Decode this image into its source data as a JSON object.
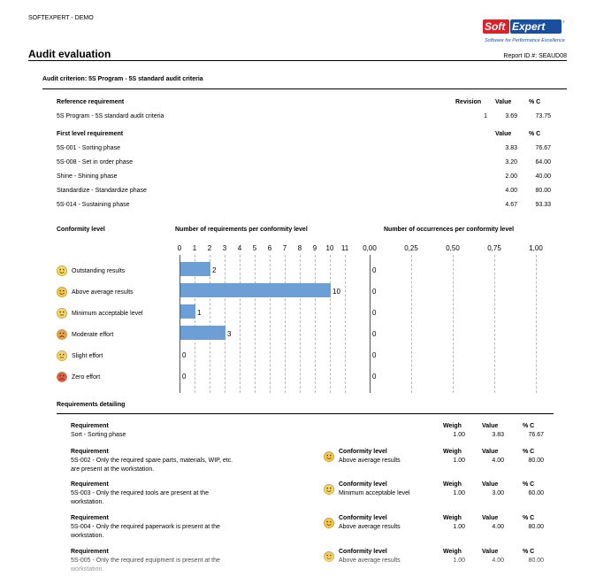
{
  "header": {
    "company": "SOFTEXPERT - DEMO",
    "title": "Audit evaluation",
    "report_id": "Report ID #: SEAUD08",
    "logo": {
      "soft": "Soft",
      "expert": "Expert",
      "tagline": "Software for Performance Excellence",
      "reg": "®"
    }
  },
  "criterion": "Audit criterion: 5S Program - 5S standard audit criteria",
  "reference": {
    "headers": {
      "name": "Reference requirement",
      "revision": "Revision",
      "value": "Value",
      "pct": "% C"
    },
    "row": {
      "name": "5S Program - 5S standard audit criteria",
      "revision": "1",
      "value": "3.69",
      "pct": "73.75"
    }
  },
  "first_level": {
    "headers": {
      "name": "First level requirement",
      "value": "Value",
      "pct": "% C"
    },
    "rows": [
      {
        "name": "5S-001 - Sorting phase",
        "value": "3.83",
        "pct": "76.67"
      },
      {
        "name": "5S-008 - Set in order phase",
        "value": "3.20",
        "pct": "64.00"
      },
      {
        "name": "Shine - Shining phase",
        "value": "2.00",
        "pct": "40.00"
      },
      {
        "name": "Standardize - Standardize phase",
        "value": "4.00",
        "pct": "80.00"
      },
      {
        "name": "5S-014 - Sustaining phase",
        "value": "4.67",
        "pct": "93.33"
      }
    ]
  },
  "conformity": {
    "title": "Conformity level",
    "levels": [
      {
        "label": "Outstanding results",
        "color": "#f2dc5a"
      },
      {
        "label": "Above average results",
        "color": "#f2c94c"
      },
      {
        "label": "Minimum acceptable level",
        "color": "#f2d66a"
      },
      {
        "label": "Moderate effort",
        "color": "#e8a34a"
      },
      {
        "label": "Slight effort",
        "color": "#f2d66a"
      },
      {
        "label": "Zero effort",
        "color": "#e05a4a"
      }
    ]
  },
  "chart_data": [
    {
      "type": "bar",
      "title": "Number of requirements per conformity level",
      "categories": [
        "Outstanding results",
        "Above average results",
        "Minimum acceptable level",
        "Moderate effort",
        "Slight effort",
        "Zero effort"
      ],
      "values": [
        2,
        10,
        1,
        3,
        0,
        0
      ],
      "xlim": [
        0,
        11
      ],
      "ticks": [
        "0",
        "1",
        "2",
        "3",
        "4",
        "5",
        "6",
        "7",
        "8",
        "9",
        "10",
        "11"
      ],
      "color": "#6d9fd6",
      "grid": true
    },
    {
      "type": "bar",
      "title": "Number of occurrences per conformity level",
      "categories": [
        "Outstanding results",
        "Above average results",
        "Minimum acceptable level",
        "Moderate effort",
        "Slight effort",
        "Zero effort"
      ],
      "values": [
        0,
        0,
        0,
        0,
        0,
        0
      ],
      "xlim": [
        0,
        1
      ],
      "ticks": [
        "0,00",
        "0,25",
        "0,50",
        "0,75",
        "1,00"
      ],
      "grid": true
    }
  ],
  "detailing": {
    "title": "Requirements detailing",
    "labels": {
      "requirement": "Requirement",
      "weigh": "Weigh",
      "value": "Value",
      "pct": "% C",
      "conformity": "Conformity level"
    },
    "first": {
      "text": "Sort - Sorting phase",
      "weigh": "1.00",
      "value": "3.83",
      "pct": "76.67"
    },
    "items": [
      {
        "line1": "5S-002 - Only the required spare parts, materials, WIP, etc.",
        "line2": "are present at the workstation.",
        "conformity": "Above average results",
        "weigh": "1.00",
        "value": "4.00",
        "pct": "80.00",
        "face_color": "#f2c94c"
      },
      {
        "line1": "5S-003 - Only the required tools are present at the",
        "line2": "workstation.",
        "conformity": "Minimum acceptable level",
        "weigh": "1.00",
        "value": "3.00",
        "pct": "60.00",
        "face_color": "#f2d66a"
      },
      {
        "line1": "5S-004 - Only the required paperwork is present at the",
        "line2": "workstation.",
        "conformity": "Above average results",
        "weigh": "1.00",
        "value": "4.00",
        "pct": "80.00",
        "face_color": "#f2c94c"
      },
      {
        "line1": "5S-005 - Only the required equipment is present at the",
        "line2": "workstation.",
        "conformity": "Above average results",
        "weigh": "1.00",
        "value": "4.00",
        "pct": "80.00",
        "face_color": "#f2c94c"
      }
    ]
  }
}
